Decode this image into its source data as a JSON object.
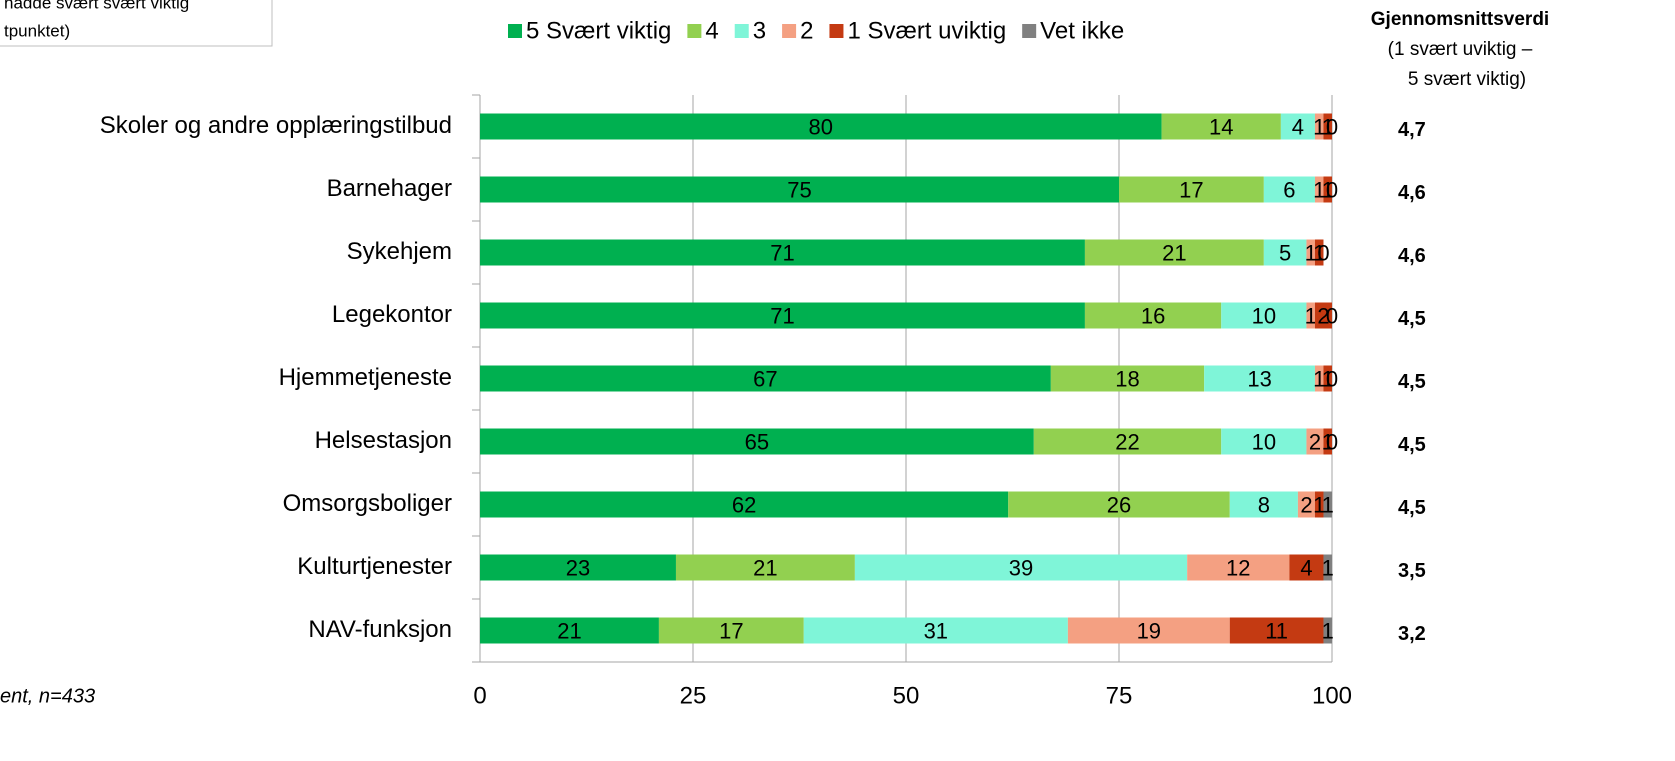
{
  "chart_data": {
    "type": "stacked_bar_horizontal",
    "note_box": [
      "hadde svært svært viktig",
      "tpunktet)"
    ],
    "footnote": "ent, n=433",
    "average_header": {
      "title": "Gjennomsnittsverdi",
      "subtitle": [
        "(1 svært uviktig –",
        "5 svært viktig)"
      ]
    },
    "categories": [
      "Skoler og andre opplæringstilbud",
      "Barnehager",
      "Sykehjem",
      "Legekontor",
      "Hjemmetjeneste",
      "Helsestasjon",
      "Omsorgsboliger",
      "Kulturtjenester",
      "NAV-funksjon"
    ],
    "averages": [
      "4,7",
      "4,6",
      "4,6",
      "4,5",
      "4,5",
      "4,5",
      "4,5",
      "3,5",
      "3,2"
    ],
    "series": [
      {
        "name": "5 Svært viktig",
        "color": "#00b050",
        "values": [
          80,
          75,
          71,
          71,
          67,
          65,
          62,
          23,
          21
        ]
      },
      {
        "name": "4",
        "color": "#92d050",
        "values": [
          14,
          17,
          21,
          16,
          18,
          22,
          26,
          21,
          17
        ]
      },
      {
        "name": "3",
        "color": "#7ff5d8",
        "values": [
          4,
          6,
          5,
          10,
          13,
          10,
          8,
          39,
          31
        ]
      },
      {
        "name": "2",
        "color": "#f4a082",
        "values": [
          1,
          1,
          1,
          1,
          1,
          2,
          2,
          12,
          19
        ]
      },
      {
        "name": "1 Svært uviktig",
        "color": "#c43a12",
        "values": [
          1,
          1,
          1,
          2,
          1,
          1,
          1,
          4,
          11
        ]
      },
      {
        "name": "Vet ikke",
        "color": "#808080",
        "values": [
          0,
          0,
          0,
          0,
          0,
          0,
          1,
          1,
          1
        ]
      }
    ],
    "xlim": [
      0,
      100
    ],
    "xticks": [
      0,
      25,
      50,
      75,
      100
    ],
    "grid": true
  }
}
